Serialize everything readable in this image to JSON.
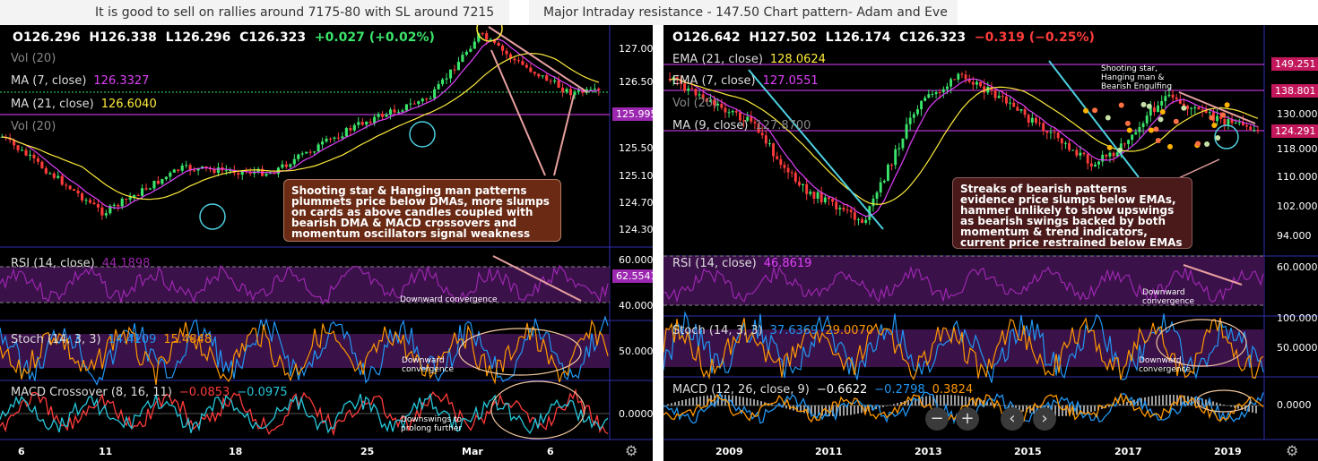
{
  "left": {
    "title": "It is good to sell on rallies around 7175-80 with SL around 7215",
    "ohlc": {
      "o": "O126.296",
      "h": "H126.338",
      "l": "L126.296",
      "c": "C126.323",
      "chg": "+0.027 (+0.02%)"
    },
    "vol_label_1": "Vol (20)",
    "ma7_label": "MA (7, close)",
    "ma7_value": "126.3327",
    "ma21_label": "MA (21, close)",
    "ma21_value": "126.6040",
    "vol_label_2": "Vol (20)",
    "price_ticks": [
      "127.000",
      "126.500",
      "126.000",
      "125.500",
      "125.100",
      "124.700",
      "124.300"
    ],
    "price_tag": "125.995",
    "note": "Shooting star & Hanging man patterns plummets price below DMAs, more slumps on cards as above candles coupled with bearish DMA & MACD crossovers and momentum oscillators signal weakness",
    "rsi_label": "RSI (14, close)",
    "rsi_value": "44.1898",
    "rsi_ticks": [
      "60.0000",
      "40.0000"
    ],
    "rsi_tag": "62.5541",
    "rsi_note": "Downward convergence",
    "stoch_label": "Stoch (14, 3, 3)",
    "stoch_k": "14.4109",
    "stoch_d": "15.4848",
    "stoch_tick": "50.0000",
    "stoch_note": "Downward convergence",
    "macd_label": "MACD Crossover (8, 16, 11)",
    "macd_v1": "−0.0853",
    "macd_v2": "−0.0975",
    "macd_tick": "0.0000",
    "macd_note": "Downswings to prolong further",
    "x_ticks": [
      "6",
      "11",
      "18",
      "25",
      "Mar",
      "6"
    ]
  },
  "right": {
    "title": "Major Intraday resistance - 147.50 Chart pattern- Adam and Eve",
    "ohlc": {
      "o": "O126.642",
      "h": "H127.502",
      "l": "L126.174",
      "c": "C126.323",
      "chg": "−0.319 (−0.25%)"
    },
    "ema21_label": "EMA (21, close)",
    "ema21_value": "128.0624",
    "ema7_label": "EMA (7, close)",
    "ema7_value": "127.0551",
    "vol_label": "Vol (20)",
    "ma9_label": "MA (9, close)",
    "ma9_value": "127.8700",
    "price_ticks": [
      "130.000",
      "118.000",
      "110.000",
      "102.000",
      "94.000"
    ],
    "price_tags": [
      "149.251",
      "138.801",
      "124.291"
    ],
    "pattern_note": "Shooting star, Hanging man & Bearish Engulfing",
    "note": "Streaks of bearish patterns evidence price slumps below EMAs, hammer unlikely to show upswings as bearish swings backed by both momentum & trend indicators, current price restrained below EMAs",
    "rsi_label": "RSI (14, close)",
    "rsi_value": "46.8619",
    "rsi_tick": "60.0000",
    "rsi_note": "Downward convergence",
    "stoch_label": "Stoch (14, 3, 3)",
    "stoch_k": "37.6369",
    "stoch_d": "29.0070",
    "stoch_ticks": [
      "100.0000",
      "50.0000"
    ],
    "stoch_note": "Downward convergence",
    "macd_label": "MACD (12, 26, close, 9)",
    "macd_v1": "−0.6622",
    "macd_v2": "−0.2798",
    "macd_v3": "0.3824",
    "macd_tick": "0.0000",
    "x_ticks": [
      "2009",
      "2011",
      "2013",
      "2015",
      "2017",
      "2019"
    ],
    "controls": {
      "minus": "−",
      "plus": "+",
      "prev": "‹",
      "next": "›"
    }
  },
  "colors": {
    "up": "#3be46b",
    "down": "#ff3b3b",
    "ma_fast": "#e040fb",
    "ma_slow": "#ffeb3b",
    "note_bg": "#6a2a14",
    "note_bg2": "#4a1a1a",
    "pane_line": "#2f2fb0",
    "level": "#e040fb",
    "rsi_fill": "#3a1148"
  }
}
